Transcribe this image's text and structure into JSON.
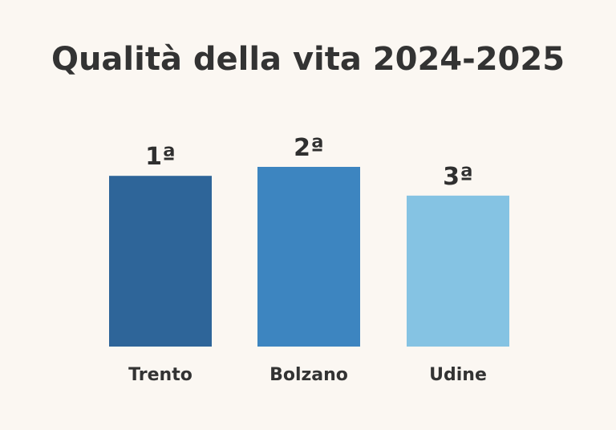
{
  "chart_data": {
    "type": "bar",
    "title": "Qualità della vita 2024-2025",
    "categories": [
      "Trento",
      "Bolzano",
      "Udine"
    ],
    "values": [
      95,
      100,
      84
    ],
    "value_note": "relative bar heights (no axis shown)",
    "data_labels": [
      "1ª",
      "2ª",
      "3ª"
    ],
    "colors": [
      "#2e6599",
      "#3d85c0",
      "#85c3e3"
    ],
    "xlabel": "",
    "ylabel": "",
    "ylim": [
      0,
      100
    ],
    "grid": false,
    "legend": "none"
  }
}
